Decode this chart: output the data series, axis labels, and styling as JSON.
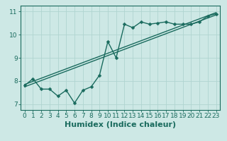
{
  "xlabel": "Humidex (Indice chaleur)",
  "bg_color": "#cde8e5",
  "line_color": "#1a6b5e",
  "grid_color": "#b0d4d0",
  "xlim": [
    -0.5,
    23.5
  ],
  "ylim": [
    6.75,
    11.25
  ],
  "xticks": [
    0,
    1,
    2,
    3,
    4,
    5,
    6,
    7,
    8,
    9,
    10,
    11,
    12,
    13,
    14,
    15,
    16,
    17,
    18,
    19,
    20,
    21,
    22,
    23
  ],
  "yticks": [
    7,
    8,
    9,
    10,
    11
  ],
  "scatter_x": [
    0,
    1,
    2,
    3,
    4,
    5,
    6,
    7,
    8,
    9,
    10,
    11,
    12,
    13,
    14,
    15,
    16,
    17,
    18,
    19,
    20,
    21,
    22,
    23
  ],
  "scatter_y": [
    7.8,
    8.1,
    7.65,
    7.65,
    7.35,
    7.6,
    7.05,
    7.6,
    7.75,
    8.25,
    9.7,
    9.0,
    10.45,
    10.3,
    10.55,
    10.45,
    10.5,
    10.55,
    10.45,
    10.45,
    10.45,
    10.55,
    10.8,
    10.9
  ],
  "trend1_x": [
    0,
    23
  ],
  "trend1_y": [
    7.85,
    10.95
  ],
  "trend2_x": [
    0,
    23
  ],
  "trend2_y": [
    7.75,
    10.85
  ],
  "marker_size": 2.5,
  "line_width": 1.0,
  "xlabel_fontsize": 8,
  "tick_fontsize": 6.5
}
